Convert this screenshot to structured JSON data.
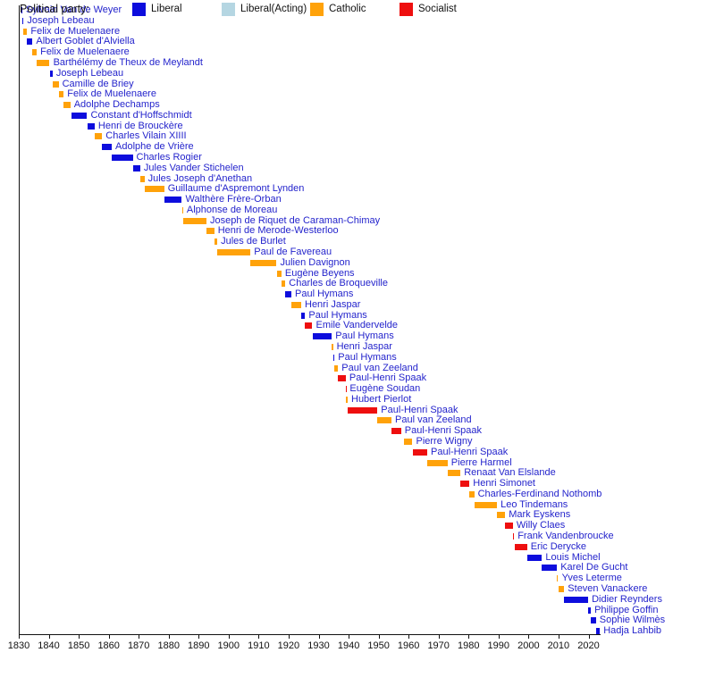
{
  "chart_data": {
    "type": "timeline",
    "title": "",
    "x_axis": {
      "min": 1830,
      "max": 2024,
      "tick_years": [
        1830,
        1840,
        1850,
        1860,
        1870,
        1880,
        1890,
        1900,
        1910,
        1920,
        1930,
        1940,
        1950,
        1960,
        1970,
        1980,
        1990,
        2000,
        2010,
        2020
      ]
    },
    "legend": {
      "title": "Political party:",
      "entries": [
        {
          "label": "Liberal",
          "color": "#0d0ddd"
        },
        {
          "label": "Liberal(Acting)",
          "color": "#b5d6e2"
        },
        {
          "label": "Catholic",
          "color": "#ffa20a"
        },
        {
          "label": "Socialist",
          "color": "#ee0f0f"
        }
      ]
    },
    "colors": {
      "name_text": "#2424cc",
      "axis": "#111111"
    },
    "ministers": [
      {
        "name": "Sylvain Van de Weyer",
        "party": "Liberal",
        "start": 1830.9,
        "end": 1831.2
      },
      {
        "name": "Joseph Lebeau",
        "party": "Liberal",
        "start": 1831.2,
        "end": 1831.6
      },
      {
        "name": "Felix de Muelenaere",
        "party": "Catholic",
        "start": 1831.6,
        "end": 1832.8
      },
      {
        "name": "Albert Goblet d'Alviella",
        "party": "Liberal",
        "start": 1832.8,
        "end": 1834.6
      },
      {
        "name": "Felix de Muelenaere",
        "party": "Catholic",
        "start": 1834.6,
        "end": 1836.0
      },
      {
        "name": "Barthélémy de Theux de Meylandt",
        "party": "Catholic",
        "start": 1836.0,
        "end": 1840.3
      },
      {
        "name": "Joseph Lebeau",
        "party": "Liberal",
        "start": 1840.3,
        "end": 1841.3
      },
      {
        "name": "Camille de Briey",
        "party": "Catholic",
        "start": 1841.3,
        "end": 1843.3
      },
      {
        "name": "Felix de Muelenaere",
        "party": "Catholic",
        "start": 1843.3,
        "end": 1845.0
      },
      {
        "name": "Adolphe Dechamps",
        "party": "Catholic",
        "start": 1845.0,
        "end": 1847.2
      },
      {
        "name": "Constant d'Hoffschmidt",
        "party": "Liberal",
        "start": 1847.6,
        "end": 1852.8
      },
      {
        "name": "Henri de Brouckère",
        "party": "Liberal",
        "start": 1852.8,
        "end": 1855.3
      },
      {
        "name": "Charles Vilain XIIII",
        "party": "Catholic",
        "start": 1855.3,
        "end": 1857.8
      },
      {
        "name": "Adolphe de Vrière",
        "party": "Liberal",
        "start": 1857.8,
        "end": 1861.0
      },
      {
        "name": "Charles Rogier",
        "party": "Liberal",
        "start": 1861.0,
        "end": 1868.0
      },
      {
        "name": "Jules Vander Stichelen",
        "party": "Liberal",
        "start": 1868.0,
        "end": 1870.5
      },
      {
        "name": "Jules Joseph d'Anethan",
        "party": "Catholic",
        "start": 1870.5,
        "end": 1871.9
      },
      {
        "name": "Guillaume d'Aspremont Lynden",
        "party": "Catholic",
        "start": 1871.9,
        "end": 1878.5
      },
      {
        "name": "Walthère Frère-Orban",
        "party": "Liberal",
        "start": 1878.5,
        "end": 1884.4
      },
      {
        "name": "Alphonse de Moreau",
        "party": "Catholic",
        "start": 1884.4,
        "end": 1884.8
      },
      {
        "name": "Joseph de Riquet de Caraman-Chimay",
        "party": "Catholic",
        "start": 1884.8,
        "end": 1892.6
      },
      {
        "name": "Henri de Merode-Westerloo",
        "party": "Catholic",
        "start": 1892.6,
        "end": 1895.2
      },
      {
        "name": "Jules de Burlet",
        "party": "Catholic",
        "start": 1895.2,
        "end": 1896.2
      },
      {
        "name": "Paul de Favereau",
        "party": "Catholic",
        "start": 1896.2,
        "end": 1907.3
      },
      {
        "name": "Julien Davignon",
        "party": "Catholic",
        "start": 1907.3,
        "end": 1916.0
      },
      {
        "name": "Eugène Beyens",
        "party": "Catholic",
        "start": 1916.0,
        "end": 1917.6
      },
      {
        "name": "Charles de Broqueville",
        "party": "Catholic",
        "start": 1917.6,
        "end": 1918.9
      },
      {
        "name": "Paul Hymans",
        "party": "Liberal",
        "start": 1918.9,
        "end": 1920.9
      },
      {
        "name": "Henri Jaspar",
        "party": "Catholic",
        "start": 1920.9,
        "end": 1924.2
      },
      {
        "name": "Paul Hymans",
        "party": "Liberal",
        "start": 1924.2,
        "end": 1925.5
      },
      {
        "name": "Emile Vandervelde",
        "party": "Socialist",
        "start": 1925.5,
        "end": 1927.9
      },
      {
        "name": "Paul Hymans",
        "party": "Liberal",
        "start": 1927.9,
        "end": 1934.4
      },
      {
        "name": "Henri Jaspar",
        "party": "Catholic",
        "start": 1934.4,
        "end": 1934.8
      },
      {
        "name": "Paul Hymans",
        "party": "Liberal",
        "start": 1934.8,
        "end": 1935.3
      },
      {
        "name": "Paul van Zeeland",
        "party": "Catholic",
        "start": 1935.3,
        "end": 1936.5
      },
      {
        "name": "Paul-Henri Spaak",
        "party": "Socialist",
        "start": 1936.5,
        "end": 1939.05
      },
      {
        "name": "Eugène Soudan",
        "party": "Socialist",
        "start": 1939.05,
        "end": 1939.2
      },
      {
        "name": "Hubert Pierlot",
        "party": "Catholic",
        "start": 1939.2,
        "end": 1939.7
      },
      {
        "name": "Paul-Henri Spaak",
        "party": "Socialist",
        "start": 1939.7,
        "end": 1949.6
      },
      {
        "name": "Paul van Zeeland",
        "party": "Catholic",
        "start": 1949.6,
        "end": 1954.3
      },
      {
        "name": "Paul-Henri Spaak",
        "party": "Socialist",
        "start": 1954.3,
        "end": 1957.5
      },
      {
        "name": "Pierre Wigny",
        "party": "Catholic",
        "start": 1958.5,
        "end": 1961.3
      },
      {
        "name": "Paul-Henri Spaak",
        "party": "Socialist",
        "start": 1961.3,
        "end": 1966.2
      },
      {
        "name": "Pierre Harmel",
        "party": "Catholic",
        "start": 1966.2,
        "end": 1973.0
      },
      {
        "name": "Renaat Van Elslande",
        "party": "Catholic",
        "start": 1973.0,
        "end": 1977.3
      },
      {
        "name": "Henri Simonet",
        "party": "Socialist",
        "start": 1977.3,
        "end": 1980.3
      },
      {
        "name": "Charles-Ferdinand Nothomb",
        "party": "Catholic",
        "start": 1980.3,
        "end": 1981.9
      },
      {
        "name": "Leo Tindemans",
        "party": "Catholic",
        "start": 1981.9,
        "end": 1989.5
      },
      {
        "name": "Mark Eyskens",
        "party": "Catholic",
        "start": 1989.5,
        "end": 1992.2
      },
      {
        "name": "Willy Claes",
        "party": "Socialist",
        "start": 1992.2,
        "end": 1994.8
      },
      {
        "name": "Frank Vandenbroucke",
        "party": "Socialist",
        "start": 1994.8,
        "end": 1995.2
      },
      {
        "name": "Eric Derycke",
        "party": "Socialist",
        "start": 1995.4,
        "end": 1999.5
      },
      {
        "name": "Louis Michel",
        "party": "Liberal",
        "start": 1999.5,
        "end": 2004.5
      },
      {
        "name": "Karel De Gucht",
        "party": "Liberal",
        "start": 2004.5,
        "end": 2009.5
      },
      {
        "name": "Yves Leterme",
        "party": "Catholic",
        "start": 2009.5,
        "end": 2009.9
      },
      {
        "name": "Steven Vanackere",
        "party": "Catholic",
        "start": 2009.9,
        "end": 2011.9
      },
      {
        "name": "Didier Reynders",
        "party": "Liberal",
        "start": 2011.9,
        "end": 2019.9
      },
      {
        "name": "Philippe Goffin",
        "party": "Liberal",
        "start": 2019.9,
        "end": 2020.8
      },
      {
        "name": "Sophie Wilmès",
        "party": "Liberal",
        "start": 2020.8,
        "end": 2022.5
      },
      {
        "name": "Hadja Lahbib",
        "party": "Liberal",
        "start": 2022.5,
        "end": 2023.8
      }
    ]
  }
}
